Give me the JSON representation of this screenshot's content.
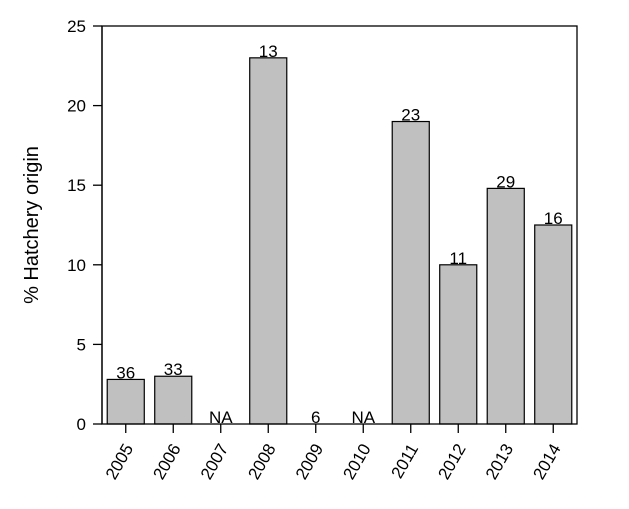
{
  "chart_data": {
    "type": "bar",
    "ylabel": "% Hatchery origin",
    "xlabel": "",
    "ylim": [
      0,
      25
    ],
    "yticks": [
      0,
      5,
      10,
      15,
      20,
      25
    ],
    "categories": [
      "2005",
      "2006",
      "2007",
      "2008",
      "2009",
      "2010",
      "2011",
      "2012",
      "2013",
      "2014"
    ],
    "values": [
      2.8,
      3.0,
      null,
      23.0,
      0,
      null,
      19.0,
      10.0,
      14.8,
      12.5
    ],
    "bar_labels": [
      "36",
      "33",
      "NA",
      "13",
      "6",
      "NA",
      "23",
      "11",
      "29",
      "16"
    ],
    "grid": false,
    "legend": "none",
    "colors": {
      "bar_fill": "#c0c0c0",
      "bar_stroke": "#000000"
    }
  }
}
